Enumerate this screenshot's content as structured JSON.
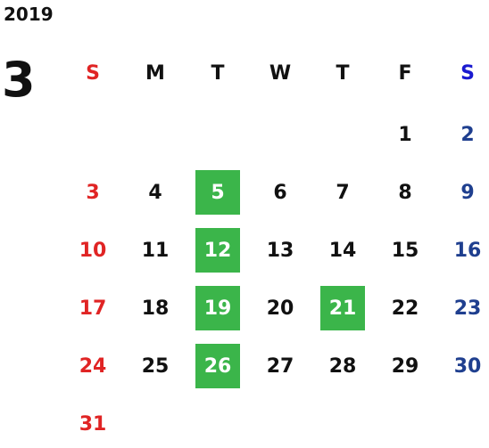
{
  "calendar": {
    "year": "2019",
    "month": "3",
    "weekdays": [
      "S",
      "M",
      "T",
      "W",
      "T",
      "F",
      "S"
    ],
    "weekday_colors": [
      "#e02424",
      "#111111",
      "#111111",
      "#111111",
      "#111111",
      "#111111",
      "#1a1ad0"
    ],
    "day_colors": [
      "#e02424",
      "#111111",
      "#111111",
      "#111111",
      "#111111",
      "#111111",
      "#1f3f8f"
    ],
    "highlight_color": "#3bb54a",
    "highlight_text_color": "#ffffff",
    "weeks": [
      [
        null,
        null,
        null,
        null,
        null,
        {
          "day": "1"
        },
        {
          "day": "2"
        }
      ],
      [
        {
          "day": "3"
        },
        {
          "day": "4"
        },
        {
          "day": "5",
          "highlighted": true
        },
        {
          "day": "6"
        },
        {
          "day": "7"
        },
        {
          "day": "8"
        },
        {
          "day": "9"
        }
      ],
      [
        {
          "day": "10"
        },
        {
          "day": "11"
        },
        {
          "day": "12",
          "highlighted": true
        },
        {
          "day": "13"
        },
        {
          "day": "14"
        },
        {
          "day": "15"
        },
        {
          "day": "16"
        }
      ],
      [
        {
          "day": "17"
        },
        {
          "day": "18"
        },
        {
          "day": "19",
          "highlighted": true
        },
        {
          "day": "20"
        },
        {
          "day": "21",
          "highlighted": true
        },
        {
          "day": "22"
        },
        {
          "day": "23"
        }
      ],
      [
        {
          "day": "24"
        },
        {
          "day": "25"
        },
        {
          "day": "26",
          "highlighted": true
        },
        {
          "day": "27"
        },
        {
          "day": "28"
        },
        {
          "day": "29"
        },
        {
          "day": "30"
        }
      ],
      [
        {
          "day": "31"
        },
        null,
        null,
        null,
        null,
        null,
        null
      ]
    ]
  }
}
